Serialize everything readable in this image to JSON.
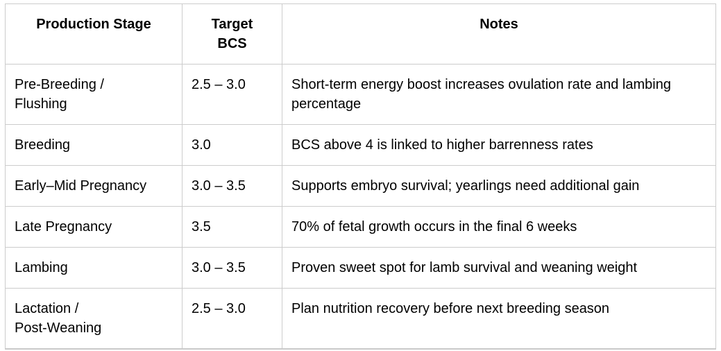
{
  "table": {
    "border_color": "#cccccc",
    "text_color": "#000000",
    "headers": {
      "stage": "Production Stage",
      "bcs": "Target\nBCS",
      "notes": "Notes"
    },
    "rows": [
      {
        "stage": "Pre-Breeding /\nFlushing",
        "bcs": "2.5 – 3.0",
        "notes": "Short-term energy boost increases ovulation rate and lambing percentage"
      },
      {
        "stage": "Breeding",
        "bcs": "3.0",
        "notes": "BCS above 4 is linked to higher barrenness rates"
      },
      {
        "stage": "Early–Mid Pregnancy",
        "bcs": "3.0 – 3.5",
        "notes": "Supports embryo survival; yearlings need additional gain"
      },
      {
        "stage": "Late Pregnancy",
        "bcs": "3.5",
        "notes": "70% of fetal growth occurs in the final 6 weeks"
      },
      {
        "stage": "Lambing",
        "bcs": "3.0 – 3.5",
        "notes": "Proven sweet spot for lamb survival and weaning weight"
      },
      {
        "stage": "Lactation /\nPost-Weaning",
        "bcs": "2.5 – 3.0",
        "notes": "Plan nutrition recovery before next breeding season"
      }
    ]
  }
}
